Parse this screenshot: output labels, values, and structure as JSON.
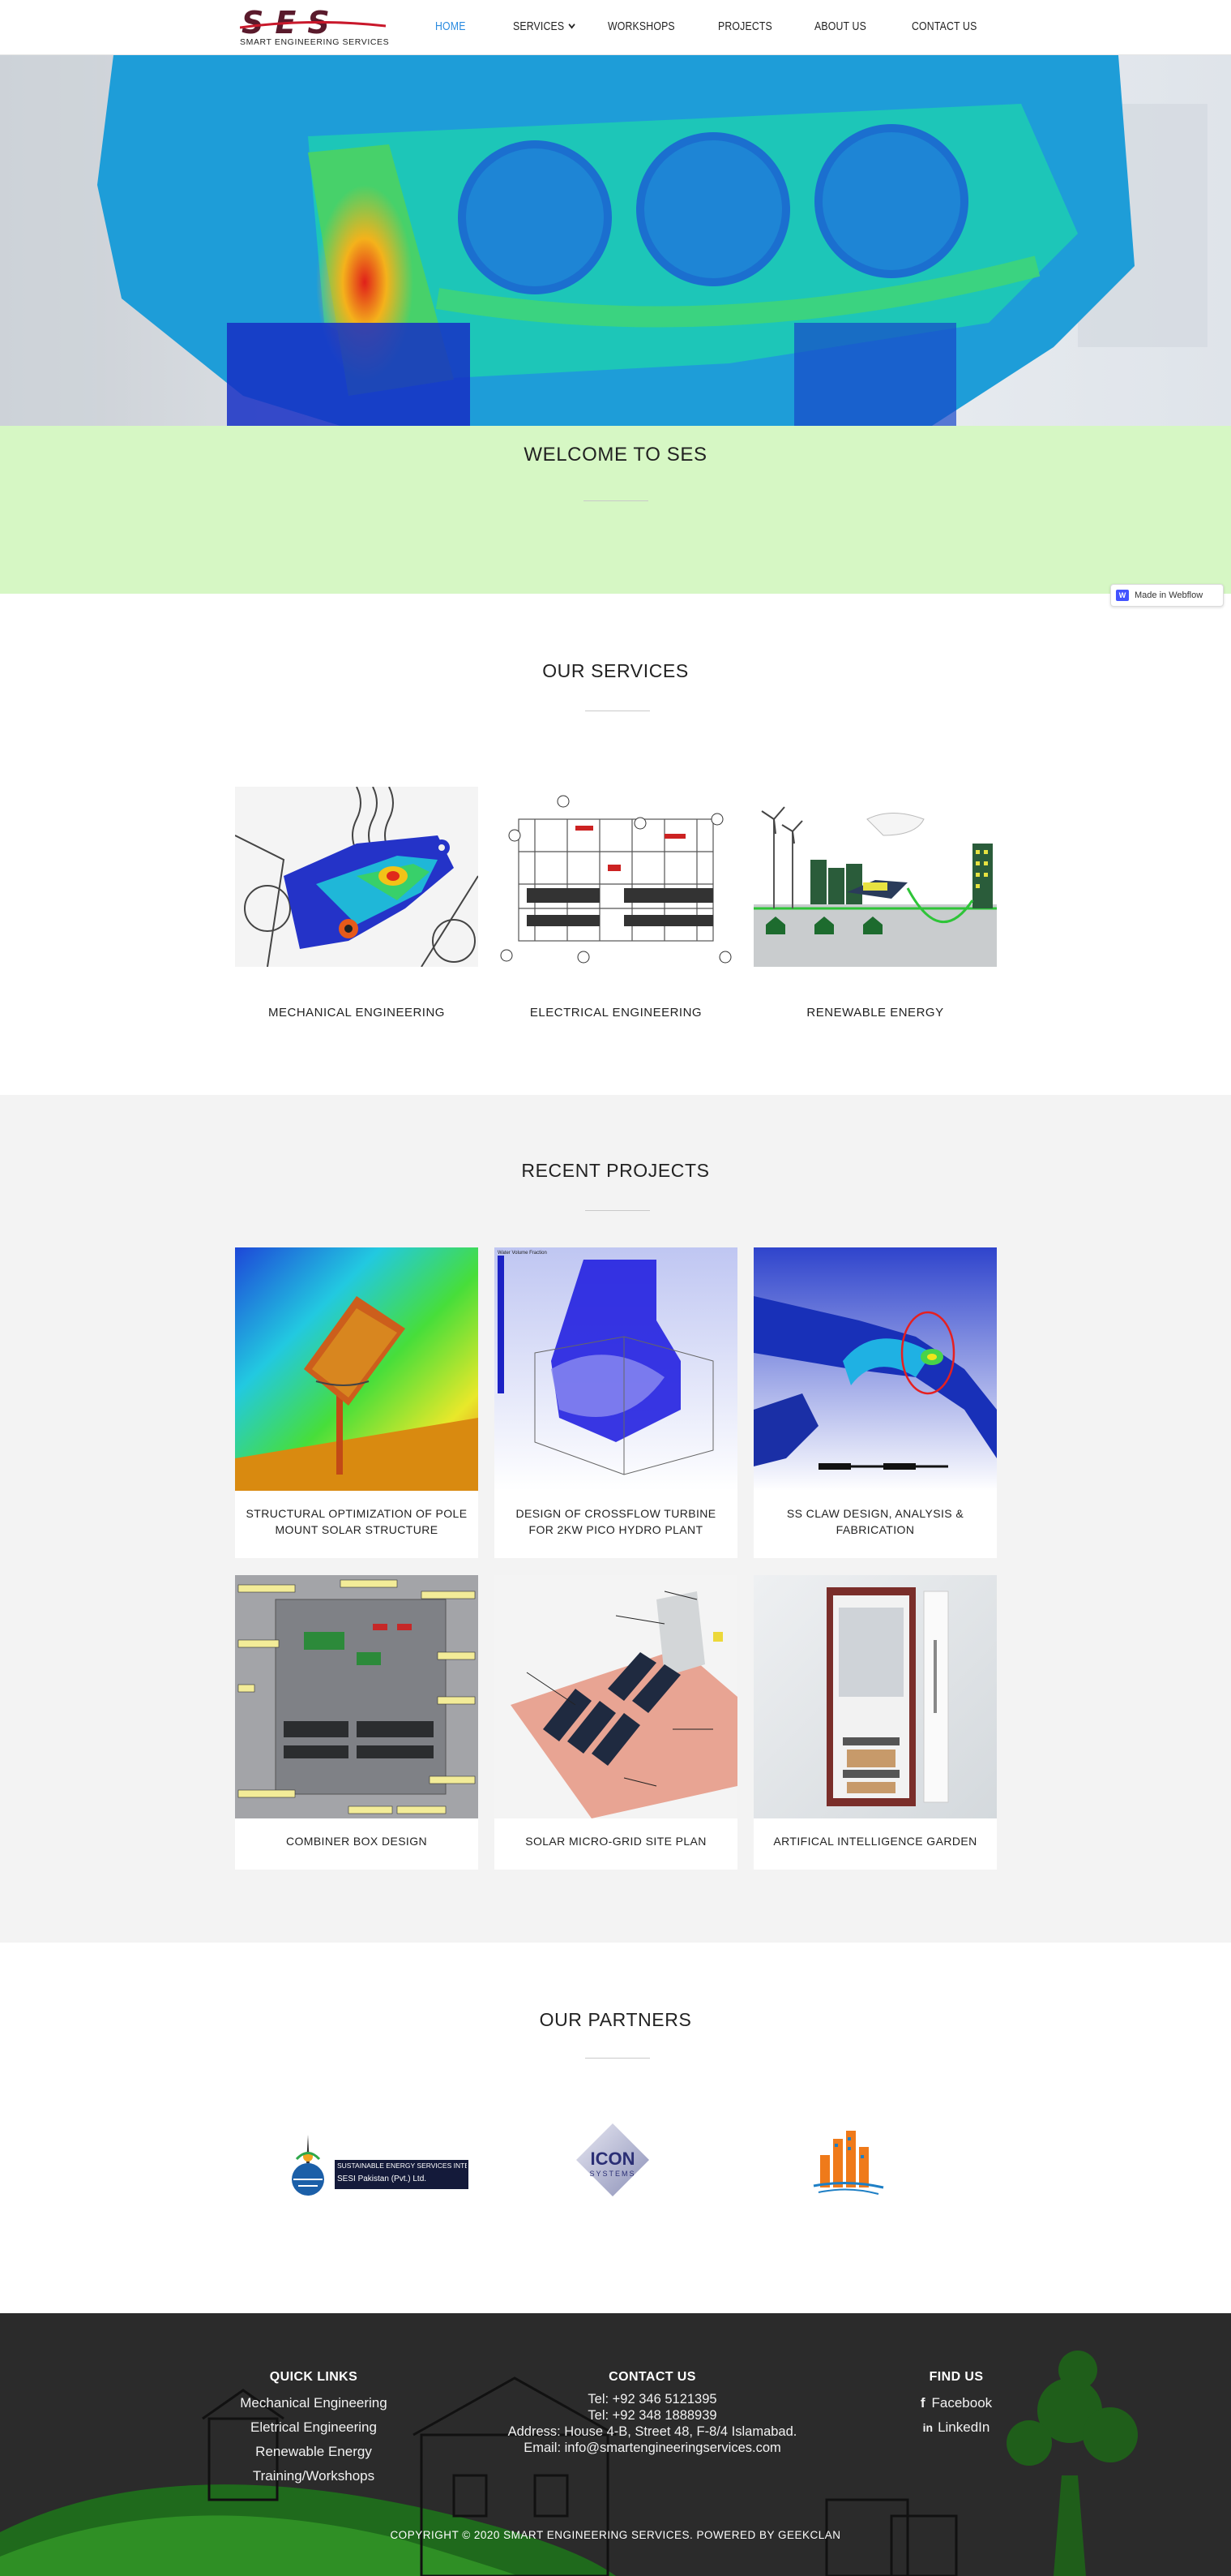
{
  "brand": {
    "logo_mark": "SES",
    "logo_subtitle": "SMART ENGINEERING SERVICES"
  },
  "nav": {
    "items": [
      {
        "label": "HOME",
        "active": true
      },
      {
        "label": "SERVICES",
        "has_dropdown": true
      },
      {
        "label": "WORKSHOPS"
      },
      {
        "label": "PROJECTS"
      },
      {
        "label": "ABOUT US"
      },
      {
        "label": "CONTACT US"
      }
    ],
    "active_color": "#2a8be0"
  },
  "welcome": {
    "title": "WELCOME TO SES",
    "background": "#d6f7c4"
  },
  "webflow_badge": {
    "label": "Made in Webflow",
    "icon": "webflow-logo-icon"
  },
  "services": {
    "title": "OUR SERVICES",
    "items": [
      {
        "label": "MECHANICAL ENGINEERING",
        "image": "fea-suspension-bracket-image"
      },
      {
        "label": "ELECTRICAL ENGINEERING",
        "image": "electrical-schematic-image"
      },
      {
        "label": "RENEWABLE ENERGY",
        "image": "renewable-energy-illustration"
      }
    ]
  },
  "projects": {
    "title": "RECENT PROJECTS",
    "items": [
      {
        "label": "STRUCTURAL OPTIMIZATION OF POLE MOUNT SOLAR STRUCTURE",
        "image": "solar-structure-cfd-image"
      },
      {
        "label": "DESIGN OF CROSSFLOW TURBINE FOR 2KW PICO HYDRO PLANT",
        "image": "crossflow-turbine-image"
      },
      {
        "label": "SS CLAW DESIGN, ANALYSIS & FABRICATION",
        "image": "ss-claw-fea-image"
      },
      {
        "label": "COMBINER BOX DESIGN",
        "image": "combiner-box-image"
      },
      {
        "label": "SOLAR MICRO-GRID SITE PLAN",
        "image": "solar-microgrid-image"
      },
      {
        "label": "ARTIFICAL INTELLIGENCE GARDEN",
        "image": "ai-garden-cabinet-image"
      }
    ]
  },
  "partners": {
    "title": "OUR PARTNERS",
    "items": [
      {
        "name": "SUSTAINABLE ENERGY SERVICES INTERNATIONAL",
        "sub": "SESI Pakistan (Pvt.) Ltd."
      },
      {
        "name": "ICON SYSTEMS",
        "logo_text": "ICON",
        "logo_sub": "SYSTEMS"
      },
      {
        "name": "building-partner-logo"
      }
    ]
  },
  "footer": {
    "quick_links": {
      "title": "QUICK LINKS",
      "links": [
        "Mechanical Engineering",
        "Eletrical Engineering",
        "Renewable Energy",
        "Training/Workshops"
      ]
    },
    "contact": {
      "title": "CONTACT US",
      "lines": [
        "Tel: +92 346 5121395",
        "Tel: +92 348 1888939",
        "Address: House 4-B, Street 48, F-8/4 Islamabad.",
        "Email: info@smartengineeringservices.com"
      ]
    },
    "find_us": {
      "title": "FIND US",
      "links": [
        {
          "label": "Facebook",
          "icon": "facebook-icon"
        },
        {
          "label": "LinkedIn",
          "icon": "linkedin-icon"
        }
      ]
    },
    "copyright": "COPYRIGHT © 2020 SMART ENGINEERING SERVICES. POWERED BY GEEKCLAN"
  }
}
